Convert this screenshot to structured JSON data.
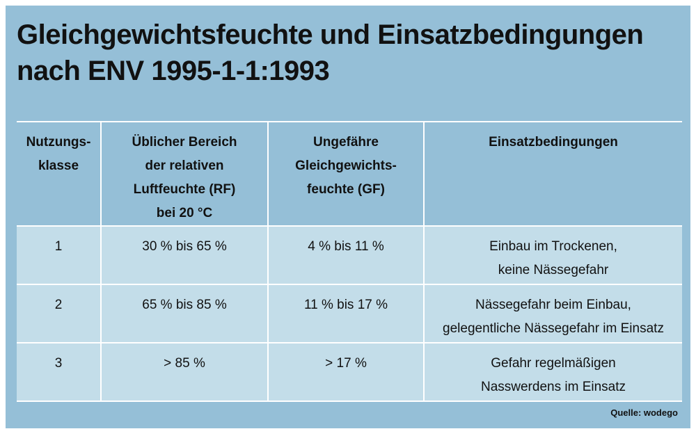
{
  "title": {
    "line1": "Gleichgewichtsfeuchte und Einsatzbedingungen",
    "line2": "nach ENV 1995-1-1:1993"
  },
  "table": {
    "headers": [
      [
        "Nutzungs-",
        "klasse"
      ],
      [
        "Üblicher Bereich",
        "der relativen",
        "Luftfeuchte (RF)",
        "bei 20 °C"
      ],
      [
        "Ungefähre",
        "Gleichgewichts-",
        "feuchte (GF)"
      ],
      [
        "Einsatzbedingungen"
      ]
    ],
    "rows": [
      {
        "klasse": "1",
        "rf": "30 % bis 65 %",
        "gf": "4 % bis 11 %",
        "bedingungen": [
          "Einbau im Trockenen,",
          "keine Nässegefahr"
        ]
      },
      {
        "klasse": "2",
        "rf": "65 % bis 85 %",
        "gf": "11 % bis 17 %",
        "bedingungen": [
          "Nässegefahr beim Einbau,",
          "gelegentliche Nässegefahr im Einsatz"
        ]
      },
      {
        "klasse": "3",
        "rf": "> 85 %",
        "gf": "> 17 %",
        "bedingungen": [
          "Gefahr regelmäßigen",
          "Nasswerdens im Einsatz"
        ]
      }
    ]
  },
  "source": "Quelle: wodego",
  "colors": {
    "frame_background": "#95bfd7",
    "row_background": "#c3dde9",
    "grid_lines": "#ffffff"
  }
}
